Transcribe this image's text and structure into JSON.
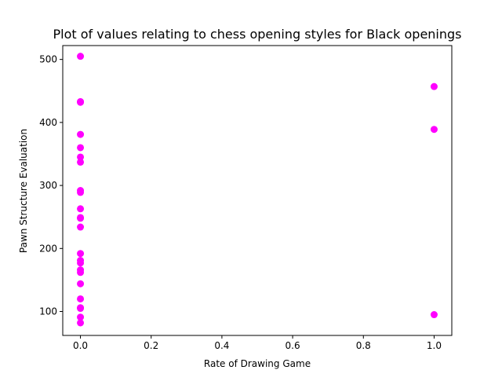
{
  "chart_data": {
    "type": "scatter",
    "title": "Plot of values relating to chess opening styles for Black openings",
    "xlabel": "Rate of Drawing Game",
    "ylabel": "Pawn Structure Evaluation",
    "xlim": [
      -0.05,
      1.05
    ],
    "ylim": [
      62,
      522
    ],
    "xticks": [
      0.0,
      0.2,
      0.4,
      0.6,
      0.8,
      1.0
    ],
    "xtick_labels": [
      "0.0",
      "0.2",
      "0.4",
      "0.6",
      "0.8",
      "1.0"
    ],
    "yticks": [
      100,
      200,
      300,
      400,
      500
    ],
    "ytick_labels": [
      "100",
      "200",
      "300",
      "400",
      "500"
    ],
    "grid": false,
    "legend": "none",
    "marker_color": "#ff00ff",
    "points": [
      {
        "x": 0,
        "y": 505
      },
      {
        "x": 0,
        "y": 433
      },
      {
        "x": 0,
        "y": 432
      },
      {
        "x": 0,
        "y": 381
      },
      {
        "x": 0,
        "y": 360
      },
      {
        "x": 0,
        "y": 345
      },
      {
        "x": 0,
        "y": 337
      },
      {
        "x": 0,
        "y": 292
      },
      {
        "x": 0,
        "y": 289
      },
      {
        "x": 0,
        "y": 263
      },
      {
        "x": 0,
        "y": 249
      },
      {
        "x": 0,
        "y": 248
      },
      {
        "x": 0,
        "y": 234
      },
      {
        "x": 0,
        "y": 192
      },
      {
        "x": 0,
        "y": 181
      },
      {
        "x": 0,
        "y": 177
      },
      {
        "x": 0,
        "y": 166
      },
      {
        "x": 0,
        "y": 162
      },
      {
        "x": 0,
        "y": 144
      },
      {
        "x": 0,
        "y": 120
      },
      {
        "x": 0,
        "y": 106
      },
      {
        "x": 0,
        "y": 105
      },
      {
        "x": 0,
        "y": 91
      },
      {
        "x": 0,
        "y": 82
      },
      {
        "x": 1,
        "y": 457
      },
      {
        "x": 1,
        "y": 389
      },
      {
        "x": 1,
        "y": 95
      }
    ]
  }
}
